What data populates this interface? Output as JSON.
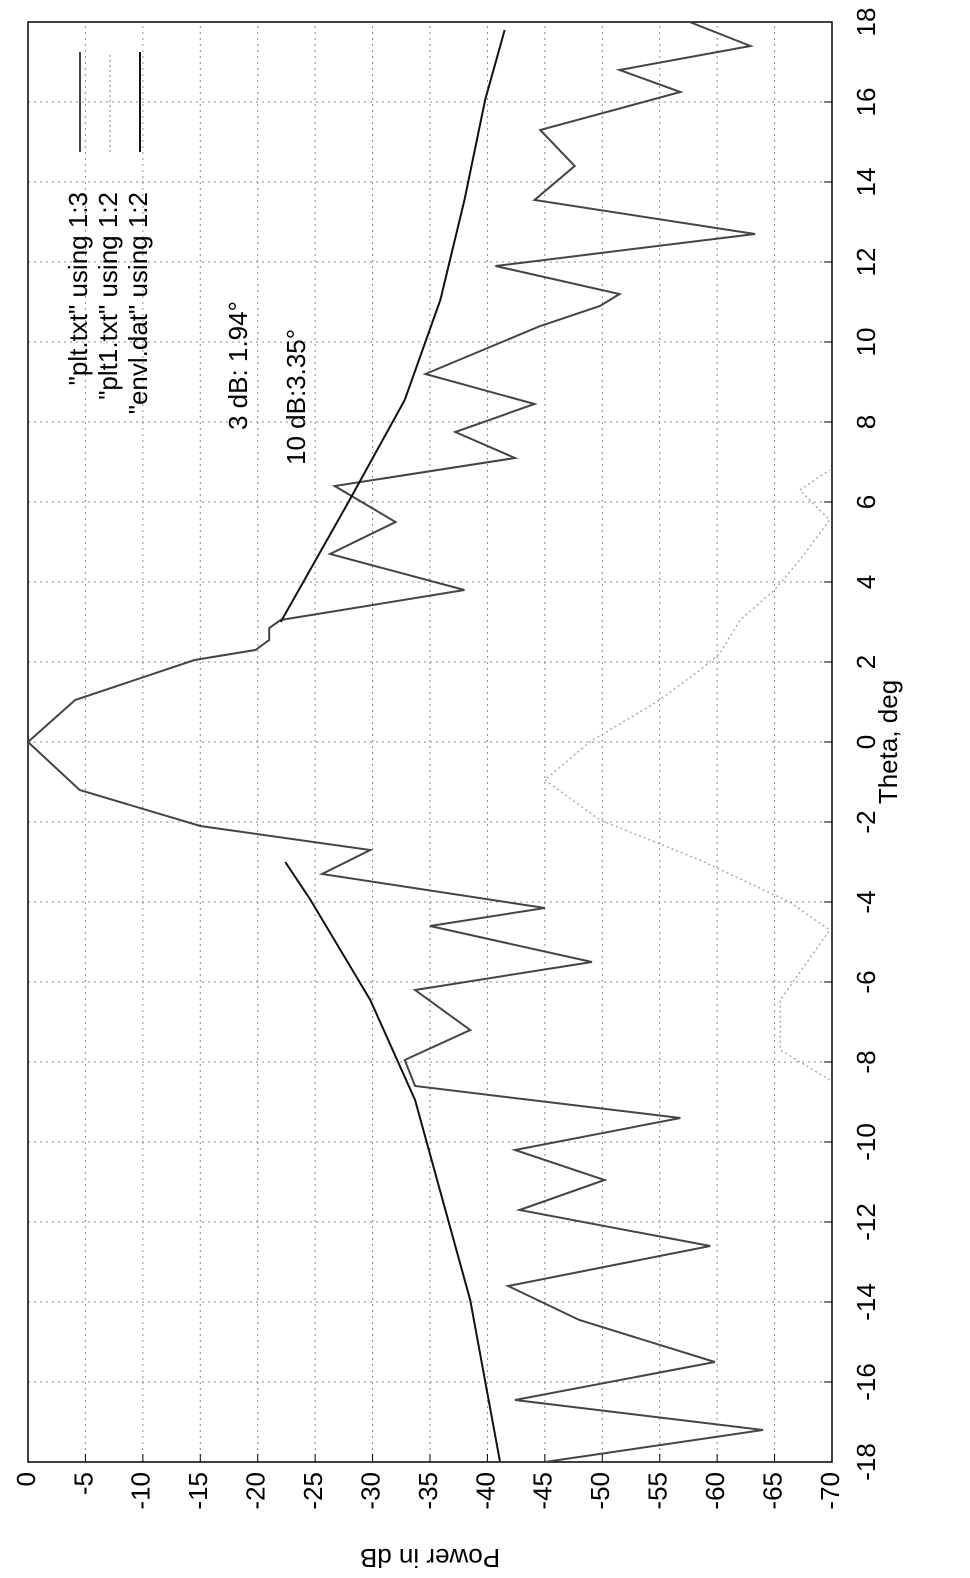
{
  "chart_data": {
    "type": "line",
    "xlabel": "Theta, deg",
    "ylabel": "Power in dB",
    "xlim": [
      -18,
      18
    ],
    "ylim": [
      -70,
      0
    ],
    "xticks": [
      -18,
      -16,
      -14,
      -12,
      -10,
      -8,
      -6,
      -4,
      -2,
      0,
      2,
      4,
      6,
      8,
      10,
      12,
      14,
      16,
      18
    ],
    "yticks": [
      0,
      -5,
      -10,
      -15,
      -20,
      -25,
      -30,
      -35,
      -40,
      -45,
      -50,
      -55,
      -60,
      -65,
      -70
    ],
    "grid": true,
    "legend": "top-right",
    "annotations": [
      "3 dB: 1.94°",
      "10 dB:3.35°"
    ],
    "series": [
      {
        "name": "\"plt.txt\" using 1:3",
        "color": "#444444",
        "style": "solid",
        "x": [
          -18,
          -17.2,
          -16.45,
          -15.5,
          -14.45,
          -13.6,
          -12.6,
          -11.7,
          -10.95,
          -10.2,
          -9.4,
          -8.6,
          -7.95,
          -7.2,
          -6.2,
          -5.5,
          -4.6,
          -4.15,
          -3.3,
          -2.7,
          -2.1,
          -1.2,
          0,
          1.05,
          2.05,
          2.3,
          2.55,
          2.85,
          3.05,
          3.8,
          4.7,
          5.5,
          6.4,
          7.1,
          7.75,
          8.45,
          9.2,
          10.4,
          10.9,
          11.2,
          11.9,
          12.7,
          13.55,
          14.4,
          15.3,
          16.25,
          16.8,
          17.4,
          18
        ],
        "values": [
          -45,
          -64,
          -42.4,
          -59.8,
          -48,
          -41.8,
          -59.4,
          -42.8,
          -50.2,
          -42.4,
          -56.8,
          -33.7,
          -32.8,
          -38.5,
          -33.7,
          -49.1,
          -35,
          -45,
          -25.6,
          -29.8,
          -15,
          -4.5,
          0,
          -4.1,
          -14.5,
          -19.8,
          -21,
          -21,
          -22,
          -38,
          -26.3,
          -32,
          -26.7,
          -42.4,
          -37.2,
          -44.1,
          -34.6,
          -44.6,
          -49.8,
          -51.5,
          -40.7,
          -63.3,
          -44.1,
          -47.6,
          -44.6,
          -56.8,
          -51.5,
          -62.9,
          -57.6
        ]
      },
      {
        "name": "\"plt1.txt\" using 1:2",
        "color": "#aaaaaa",
        "style": "dotted",
        "x": [
          -8.45,
          -7.7,
          -6.45,
          -4.7,
          -4,
          -2.95,
          -1.95,
          -0.95,
          0,
          1.05,
          1.8,
          2.2,
          3.05,
          3.8,
          4.55,
          5.55,
          6.3,
          6.8
        ],
        "values": [
          -69.8,
          -65.5,
          -65.5,
          -69.8,
          -66.3,
          -58.5,
          -49.8,
          -45,
          -48.9,
          -55,
          -58.5,
          -60.2,
          -62,
          -65,
          -67.2,
          -69.8,
          -67.2,
          -69.8
        ]
      },
      {
        "name": "\"envl.dat\" using 1:2",
        "color": "#111111",
        "style": "solid",
        "x": [
          -18,
          -13.95,
          -8.95,
          -6.45,
          -3.95,
          -3,
          0,
          3,
          6.05,
          8.55,
          11.05,
          13.55,
          16.05,
          17.8
        ],
        "values": [
          -41.1,
          -38.5,
          -33.7,
          -29.8,
          -24.6,
          -22.4,
          null,
          -22,
          -28,
          -32.8,
          -35.9,
          -38,
          -39.8,
          -41.5
        ]
      }
    ]
  }
}
